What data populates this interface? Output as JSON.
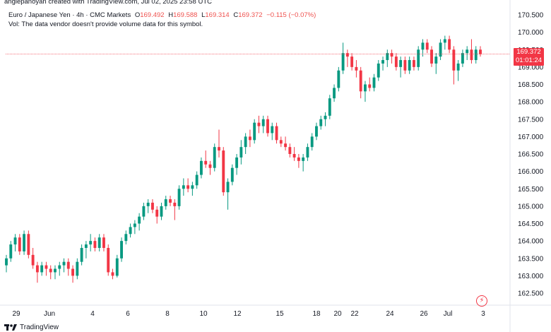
{
  "header": {
    "creator": "anglepanoyan created with TradingView.com, Jul 02, 2025 23:58 UTC",
    "symbol": "Euro / Japanese Yen · 4h · CMC Markets",
    "open_label": "O",
    "open": "169.492",
    "high_label": "H",
    "high": "169.588",
    "low_label": "L",
    "low": "169.314",
    "close_label": "C",
    "close": "169.372",
    "change": "−0.115 (−0.07%)",
    "volume_note": "Vol: The data vendor doesn't provide volume data for this symbol."
  },
  "price_label": {
    "price": "169.372",
    "countdown": "01:01:24"
  },
  "footer": {
    "brand": "TradingView"
  },
  "icons": {
    "logo": "tradingview-logo-icon",
    "alert": "lightning-icon"
  },
  "colors": {
    "up": "#089981",
    "down": "#f23645",
    "price_line": "#f23645"
  },
  "chart_data": {
    "type": "candlestick",
    "title": "Euro / Japanese Yen · 4h · CMC Markets",
    "y_ticks": [
      "170.500",
      "170.000",
      "169.500",
      "169.000",
      "168.500",
      "168.000",
      "167.500",
      "167.000",
      "166.500",
      "166.000",
      "165.500",
      "165.000",
      "164.500",
      "164.000",
      "163.500",
      "163.000",
      "162.500"
    ],
    "x_ticks": [
      "29",
      "Jun",
      "4",
      "6",
      "8",
      "10",
      "12",
      "15",
      "18",
      "20",
      "22",
      "24",
      "26",
      "Jul",
      "3"
    ],
    "ylim": [
      162.2,
      170.7
    ],
    "last_price": 169.372,
    "candles_ohlc": [
      [
        163.3,
        163.6,
        163.1,
        163.5
      ],
      [
        163.5,
        164.0,
        163.4,
        163.9
      ],
      [
        163.9,
        164.2,
        163.7,
        164.1
      ],
      [
        164.1,
        164.2,
        163.6,
        163.7
      ],
      [
        163.7,
        164.3,
        163.6,
        164.2
      ],
      [
        164.2,
        164.3,
        163.5,
        163.6
      ],
      [
        163.6,
        163.8,
        163.2,
        163.3
      ],
      [
        163.3,
        163.4,
        162.8,
        163.1
      ],
      [
        163.1,
        163.4,
        163.0,
        163.3
      ],
      [
        163.3,
        163.4,
        163.0,
        163.2
      ],
      [
        163.2,
        163.3,
        162.9,
        163.1
      ],
      [
        163.1,
        163.3,
        162.9,
        163.2
      ],
      [
        163.2,
        163.4,
        163.0,
        163.3
      ],
      [
        163.3,
        163.5,
        163.1,
        163.4
      ],
      [
        163.4,
        163.5,
        163.0,
        163.2
      ],
      [
        163.2,
        163.3,
        162.8,
        163.0
      ],
      [
        163.0,
        163.5,
        162.9,
        163.4
      ],
      [
        163.4,
        163.9,
        163.3,
        163.8
      ],
      [
        163.8,
        164.0,
        163.5,
        163.9
      ],
      [
        163.9,
        164.2,
        163.7,
        164.0
      ],
      [
        164.0,
        164.1,
        163.7,
        163.8
      ],
      [
        163.8,
        164.2,
        163.7,
        164.1
      ],
      [
        164.1,
        164.2,
        163.7,
        163.8
      ],
      [
        163.8,
        163.9,
        163.0,
        163.1
      ],
      [
        163.1,
        163.2,
        162.9,
        163.0
      ],
      [
        163.0,
        163.6,
        162.95,
        163.5
      ],
      [
        163.5,
        164.1,
        163.4,
        164.0
      ],
      [
        164.0,
        164.3,
        163.9,
        164.2
      ],
      [
        164.2,
        164.5,
        164.1,
        164.4
      ],
      [
        164.4,
        164.6,
        164.2,
        164.5
      ],
      [
        164.5,
        164.8,
        164.3,
        164.7
      ],
      [
        164.7,
        165.1,
        164.6,
        165.0
      ],
      [
        165.0,
        165.2,
        164.8,
        165.1
      ],
      [
        165.1,
        165.2,
        164.8,
        164.9
      ],
      [
        164.9,
        165.0,
        164.5,
        164.7
      ],
      [
        164.7,
        165.1,
        164.6,
        165.0
      ],
      [
        165.0,
        165.3,
        164.9,
        165.2
      ],
      [
        165.2,
        165.3,
        165.0,
        165.1
      ],
      [
        165.1,
        165.2,
        164.6,
        165.0
      ],
      [
        165.0,
        165.6,
        164.9,
        165.5
      ],
      [
        165.5,
        165.8,
        165.3,
        165.6
      ],
      [
        165.6,
        165.8,
        165.4,
        165.5
      ],
      [
        165.5,
        165.7,
        165.3,
        165.6
      ],
      [
        165.6,
        166.0,
        165.5,
        165.9
      ],
      [
        165.9,
        166.4,
        165.8,
        166.3
      ],
      [
        166.3,
        166.6,
        166.1,
        166.2
      ],
      [
        166.2,
        166.3,
        165.9,
        166.1
      ],
      [
        166.1,
        166.8,
        166.0,
        166.7
      ],
      [
        166.7,
        167.2,
        166.4,
        166.6
      ],
      [
        166.6,
        166.7,
        165.3,
        165.4
      ],
      [
        165.4,
        165.8,
        164.9,
        165.7
      ],
      [
        165.7,
        166.2,
        165.6,
        166.1
      ],
      [
        166.1,
        166.5,
        165.9,
        166.4
      ],
      [
        166.4,
        166.9,
        166.2,
        166.7
      ],
      [
        166.7,
        167.1,
        166.5,
        167.0
      ],
      [
        167.0,
        167.2,
        166.7,
        166.9
      ],
      [
        166.9,
        167.5,
        166.8,
        167.4
      ],
      [
        167.4,
        167.6,
        167.1,
        167.3
      ],
      [
        167.3,
        167.6,
        167.1,
        167.5
      ],
      [
        167.5,
        167.6,
        167.0,
        167.1
      ],
      [
        167.1,
        167.4,
        166.9,
        167.3
      ],
      [
        167.3,
        167.4,
        166.8,
        166.9
      ],
      [
        166.9,
        167.0,
        166.7,
        166.8
      ],
      [
        166.8,
        167.0,
        166.6,
        166.7
      ],
      [
        166.7,
        166.8,
        166.4,
        166.5
      ],
      [
        166.5,
        166.7,
        166.3,
        166.4
      ],
      [
        166.4,
        166.5,
        166.1,
        166.3
      ],
      [
        166.3,
        166.5,
        166.0,
        166.4
      ],
      [
        166.4,
        166.8,
        166.3,
        166.7
      ],
      [
        166.7,
        167.1,
        166.6,
        167.0
      ],
      [
        167.0,
        167.4,
        166.9,
        167.3
      ],
      [
        167.3,
        167.6,
        167.2,
        167.5
      ],
      [
        167.5,
        167.7,
        167.3,
        167.6
      ],
      [
        167.6,
        168.2,
        167.5,
        168.1
      ],
      [
        168.1,
        168.5,
        168.0,
        168.4
      ],
      [
        168.4,
        169.0,
        168.3,
        168.9
      ],
      [
        168.9,
        169.7,
        168.8,
        169.4
      ],
      [
        169.4,
        169.5,
        169.0,
        169.3
      ],
      [
        169.3,
        169.4,
        168.9,
        169.0
      ],
      [
        169.0,
        169.2,
        168.7,
        168.9
      ],
      [
        168.9,
        169.0,
        168.1,
        168.3
      ],
      [
        168.3,
        168.6,
        168.0,
        168.5
      ],
      [
        168.5,
        168.7,
        168.3,
        168.4
      ],
      [
        168.4,
        168.8,
        168.3,
        168.7
      ],
      [
        168.7,
        169.2,
        168.6,
        169.1
      ],
      [
        169.1,
        169.3,
        168.9,
        169.2
      ],
      [
        169.2,
        169.5,
        169.0,
        169.4
      ],
      [
        169.4,
        169.5,
        169.1,
        169.3
      ],
      [
        169.3,
        169.4,
        168.9,
        169.0
      ],
      [
        169.0,
        169.3,
        168.7,
        169.2
      ],
      [
        169.2,
        169.3,
        168.8,
        168.9
      ],
      [
        168.9,
        169.3,
        168.8,
        169.2
      ],
      [
        169.2,
        169.3,
        168.9,
        169.0
      ],
      [
        169.0,
        169.6,
        168.9,
        169.5
      ],
      [
        169.5,
        169.8,
        169.3,
        169.7
      ],
      [
        169.7,
        169.8,
        169.4,
        169.5
      ],
      [
        169.5,
        169.6,
        169.0,
        169.1
      ],
      [
        169.1,
        169.4,
        168.8,
        169.3
      ],
      [
        169.3,
        169.8,
        169.2,
        169.7
      ],
      [
        169.7,
        169.9,
        169.5,
        169.8
      ],
      [
        169.8,
        169.9,
        169.4,
        169.5
      ],
      [
        169.5,
        169.6,
        168.5,
        168.9
      ],
      [
        168.9,
        169.2,
        168.6,
        169.1
      ],
      [
        169.1,
        169.5,
        169.0,
        169.4
      ],
      [
        169.4,
        169.6,
        169.2,
        169.5
      ],
      [
        169.5,
        169.8,
        169.1,
        169.2
      ],
      [
        169.2,
        169.6,
        169.1,
        169.5
      ],
      [
        169.5,
        169.6,
        169.3,
        169.372
      ]
    ]
  }
}
